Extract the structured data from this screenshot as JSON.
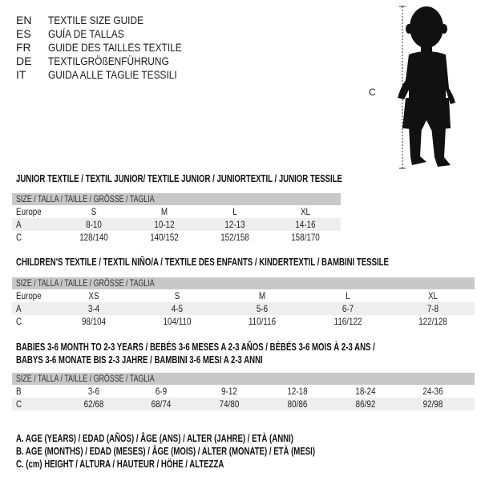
{
  "languages": [
    {
      "code": "EN",
      "text": "TEXTILE SIZE GUIDE"
    },
    {
      "code": "ES",
      "text": "GUÍA DE TALLAS"
    },
    {
      "code": "FR",
      "text": "GUIDE DES TAILLES TEXTILE"
    },
    {
      "code": "DE",
      "text": "TEXTILGRÖßENFÜHRUNG"
    },
    {
      "code": "IT",
      "text": "GUIDA ALLE TAGLIE TESSILI"
    }
  ],
  "figure": {
    "label": "C"
  },
  "tables": [
    {
      "title": "JUNIOR TEXTILE / TEXTIL JUNIOR/ TEXTILE JUNIOR / JUNIORTEXTIL / JUNIOR TESSILE",
      "header": "SIZE / TALLA / TAILLE / GRÖSSE / TAGLIA",
      "rows": [
        {
          "label": "Europe",
          "values": [
            "S",
            "M",
            "L",
            "XL"
          ]
        },
        {
          "label": "A",
          "values": [
            "8-10",
            "10-12",
            "12-13",
            "14-16"
          ]
        },
        {
          "label": "C",
          "values": [
            "128/140",
            "140/152",
            "152/158",
            "158/170"
          ]
        }
      ]
    },
    {
      "title": "CHILDREN'S TEXTILE / TEXTIL NIÑO/A / TEXTILE DES ENFANTS / KINDERTEXTIL / BAMBINI TESSILE",
      "header": "SIZE / TALLA / TAILLE / GRÖSSE / TAGLIA",
      "rows": [
        {
          "label": "Europe",
          "values": [
            "XS",
            "S",
            "M",
            "L",
            "XL"
          ]
        },
        {
          "label": "A",
          "values": [
            "3-4",
            "4-5",
            "5-6",
            "6-7",
            "7-8"
          ]
        },
        {
          "label": "C",
          "values": [
            "98/104",
            "104/110",
            "110/116",
            "116/122",
            "122/128"
          ]
        }
      ]
    },
    {
      "title": "BABIES 3-6 MONTH TO 2-3 YEARS / BEBÉS 3-6 MESES A 2-3 AÑOS / BÉBÉS 3-6 MOIS À 2-3 ANS /",
      "title2": "BABYS 3-6 MONATE BIS 2-3 JAHRE / BAMBINI 3-6 MESI A 2-3 ANNI",
      "header": "SIZE / TALLA / TAILLE / GRÖSSE / TAGLIA",
      "rows": [
        {
          "label": "B",
          "values": [
            "3-6",
            "6-9",
            "9-12",
            "12-18",
            "18-24",
            "24-36"
          ]
        },
        {
          "label": "C",
          "values": [
            "62/68",
            "68/74",
            "74/80",
            "80/86",
            "86/92",
            "92/98"
          ]
        }
      ]
    }
  ],
  "legend": [
    "A. AGE (YEARS) / EDAD (AÑOS) / ÂGE (ANS) / ALTER (JAHRE) / ETÀ (ANNI)",
    "B. AGE (MONTHS) / EDAD (MESES) / ÂGE (MOIS) / ALTER (MONATE) / ETÀ (MESI)",
    "C. (cm) HEIGHT / ALTURA / HAUTEUR / HÖHE / ALTEZZA"
  ],
  "colors": {
    "header_bg": "#c8c8c8",
    "shade_bg": "#eeeeee"
  }
}
